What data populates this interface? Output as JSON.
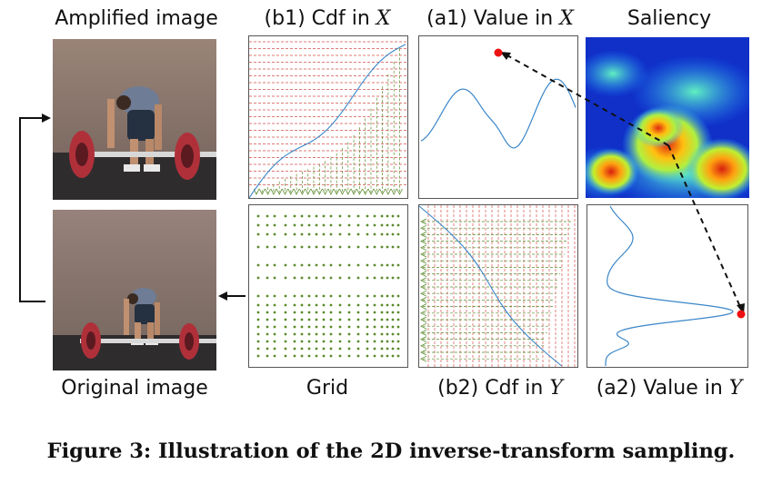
{
  "labels": {
    "amplified": "Amplified image",
    "b1_prefix": "(b1) Cdf in ",
    "b1_var": "X",
    "a1_prefix": "(a1) Value in ",
    "a1_var": "X",
    "saliency": "Saliency",
    "original": "Original image",
    "grid": "Grid",
    "b2_prefix": "(b2) Cdf in ",
    "b2_var": "Y",
    "a2_prefix": "(a2) Value in ",
    "a2_var": "Y"
  },
  "caption": "Figure 3: Illustration of the 2D inverse-transform sampling.",
  "colors": {
    "curve": "#3a86c8",
    "red_lines": "#d2504a",
    "green_lines": "#5a8a2a",
    "marker": "#ee1111"
  }
}
